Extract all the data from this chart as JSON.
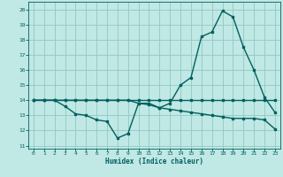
{
  "xlabel": "Humidex (Indice chaleur)",
  "background_color": "#c0e8e4",
  "grid_color": "#90c8c4",
  "line_color": "#006060",
  "x_ticks": [
    0,
    1,
    2,
    3,
    4,
    5,
    6,
    7,
    8,
    9,
    10,
    11,
    12,
    13,
    14,
    15,
    16,
    17,
    18,
    19,
    20,
    21,
    22,
    23
  ],
  "y_ticks": [
    11,
    12,
    13,
    14,
    15,
    16,
    17,
    18,
    19,
    20
  ],
  "ylim": [
    10.8,
    20.5
  ],
  "xlim": [
    -0.5,
    23.5
  ],
  "lines": [
    {
      "x": [
        0,
        1,
        2,
        3,
        4,
        5,
        6,
        7,
        8,
        9,
        10,
        11,
        12,
        13,
        14,
        15,
        16,
        17,
        18,
        19,
        20,
        21,
        22,
        23
      ],
      "y": [
        14.0,
        14.0,
        14.0,
        14.0,
        14.0,
        14.0,
        14.0,
        14.0,
        14.0,
        14.0,
        14.0,
        14.0,
        14.0,
        14.0,
        14.0,
        14.0,
        14.0,
        14.0,
        14.0,
        14.0,
        14.0,
        14.0,
        14.0,
        14.0
      ]
    },
    {
      "x": [
        0,
        1,
        2,
        3,
        4,
        5,
        6,
        7,
        8,
        9,
        10,
        11,
        12,
        13,
        14,
        15,
        16,
        17,
        18,
        19,
        20,
        21,
        22,
        23
      ],
      "y": [
        14.0,
        14.0,
        14.0,
        14.0,
        14.0,
        14.0,
        14.0,
        14.0,
        14.0,
        14.0,
        13.8,
        13.7,
        13.5,
        13.4,
        13.3,
        13.2,
        13.1,
        13.0,
        12.9,
        12.8,
        12.8,
        12.8,
        12.7,
        12.1
      ]
    },
    {
      "x": [
        0,
        1,
        2,
        3,
        4,
        5,
        6,
        7,
        8,
        9,
        10,
        11,
        12,
        13,
        14,
        15,
        16,
        17,
        18,
        19,
        20,
        21,
        22,
        23
      ],
      "y": [
        14.0,
        14.0,
        14.0,
        13.6,
        13.1,
        13.0,
        12.7,
        12.6,
        11.5,
        11.8,
        13.8,
        13.8,
        13.5,
        13.8,
        15.0,
        15.5,
        18.2,
        18.5,
        19.9,
        19.5,
        17.5,
        16.0,
        14.2,
        13.2
      ]
    }
  ]
}
